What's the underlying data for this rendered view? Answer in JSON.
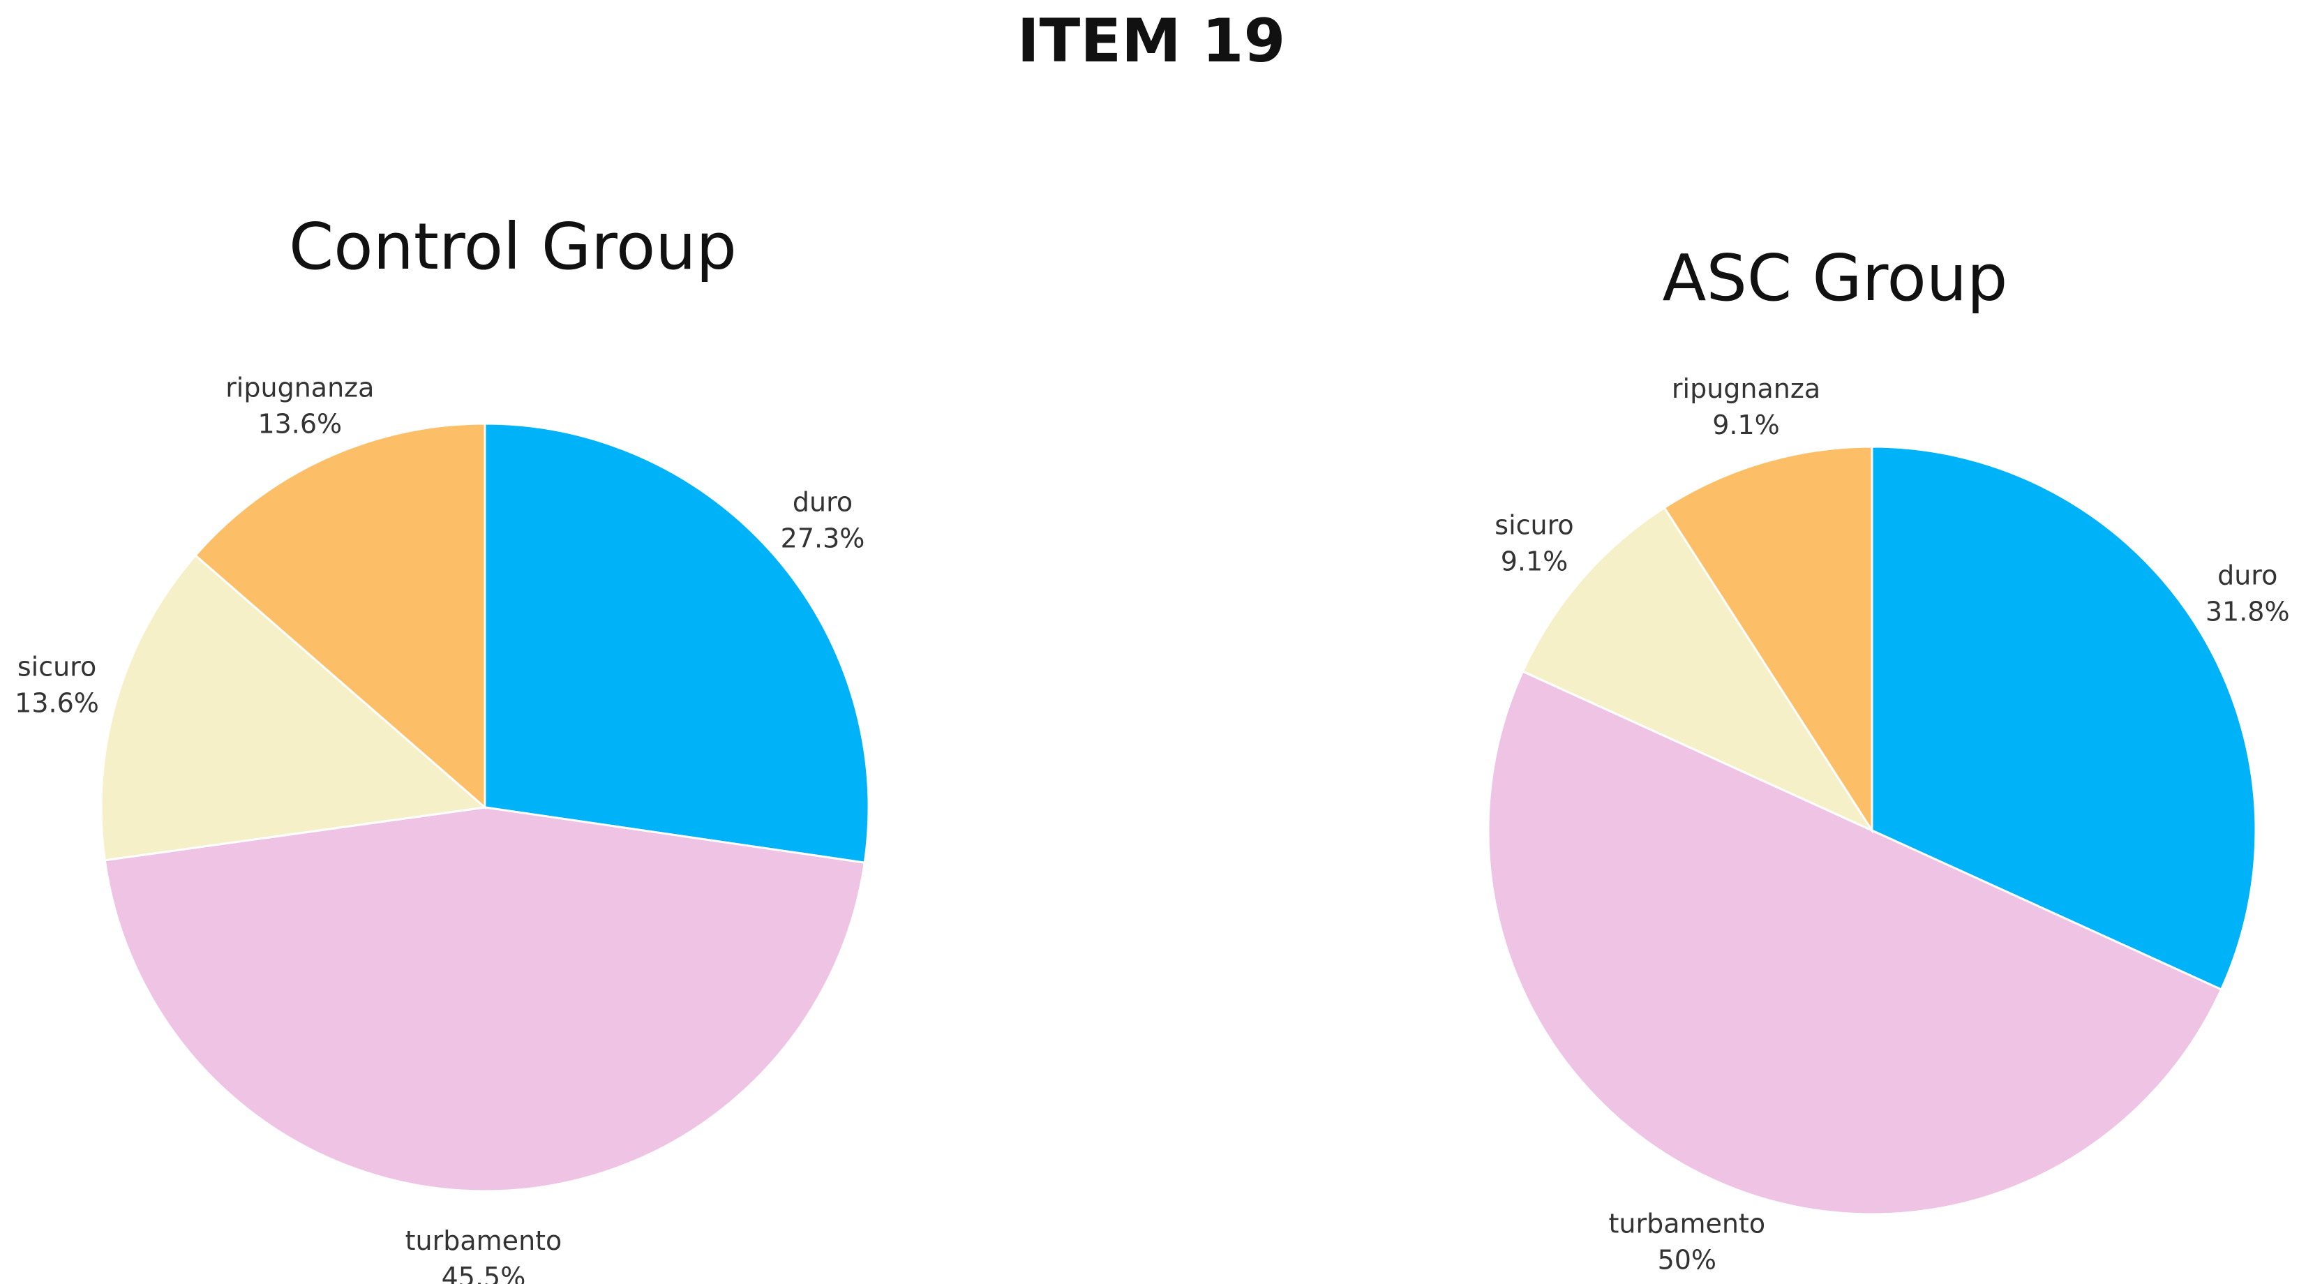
{
  "title": "ITEM 19",
  "chart_data": [
    {
      "type": "pie",
      "title": "Control Group",
      "categories": [
        "duro",
        "turbamento",
        "sicuro",
        "ripugnanza"
      ],
      "labels": [
        "27.3%",
        "45.5%",
        "13.6%",
        "13.6%"
      ],
      "values": [
        27.3,
        45.5,
        13.6,
        13.6
      ],
      "colors": [
        "#00b2f7",
        "#efc3e4",
        "#f6f0c8",
        "#fcbe66"
      ],
      "start_angle_deg": 0,
      "direction": "clockwise"
    },
    {
      "type": "pie",
      "title": "ASC Group",
      "categories": [
        "duro",
        "turbamento",
        "sicuro",
        "ripugnanza"
      ],
      "labels": [
        "31.8%",
        "50%",
        "9.1%",
        "9.1%"
      ],
      "values": [
        31.8,
        50,
        9.1,
        9.1
      ],
      "colors": [
        "#00b2f7",
        "#efc3e4",
        "#f6f0c8",
        "#fcbe66"
      ],
      "start_angle_deg": 0,
      "direction": "clockwise"
    }
  ]
}
